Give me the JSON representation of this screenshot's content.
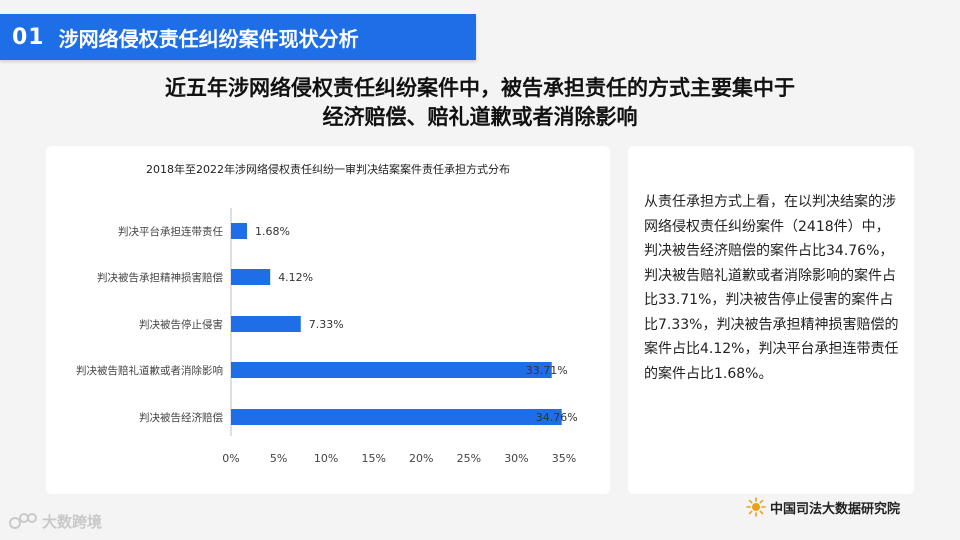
{
  "header": {
    "number": "01",
    "title": "涉网络侵权责任纠纷案件现状分析"
  },
  "headline": {
    "line1": "近五年涉网络侵权责任纠纷案件中，被告承担责任的方式主要集中于",
    "line2": "经济赔偿、赔礼道歉或者消除影响"
  },
  "chart_data": {
    "type": "bar",
    "orientation": "horizontal",
    "title": "2018年至2022年涉网络侵权责任纠纷一审判决结案案件责任承担方式分布",
    "categories": [
      "判决平台承担连带责任",
      "判决被告承担精神损害赔偿",
      "判决被告停止侵害",
      "判决被告赔礼道歉或者消除影响",
      "判决被告经济赔偿"
    ],
    "values": [
      1.68,
      4.12,
      7.33,
      33.71,
      34.76
    ],
    "value_labels": [
      "1.68%",
      "4.12%",
      "7.33%",
      "33.71%",
      "34.76%"
    ],
    "x_ticks": [
      "0%",
      "5%",
      "10%",
      "15%",
      "20%",
      "25%",
      "30%",
      "35%"
    ],
    "xlim": [
      0,
      35
    ],
    "grid": false,
    "bar_color": "#1e6ee8"
  },
  "summary": {
    "text": "从责任承担方式上看，在以判决结案的涉网络侵权责任纠纷案件（2418件）中，判决被告经济赔偿的案件占比34.76%，判决被告赔礼道歉或者消除影响的案件占比33.71%，判决被告停止侵害的案件占比7.33%，判决被告承担精神损害赔偿的案件占比4.12%，判决平台承担连带责任的案件占比1.68%。"
  },
  "footer": {
    "source": "中国司法大数据研究院",
    "watermark": "大数跨境",
    "watermark_icon": "data-cross-border-logo-icon",
    "source_icon": "sun-logo-icon"
  }
}
